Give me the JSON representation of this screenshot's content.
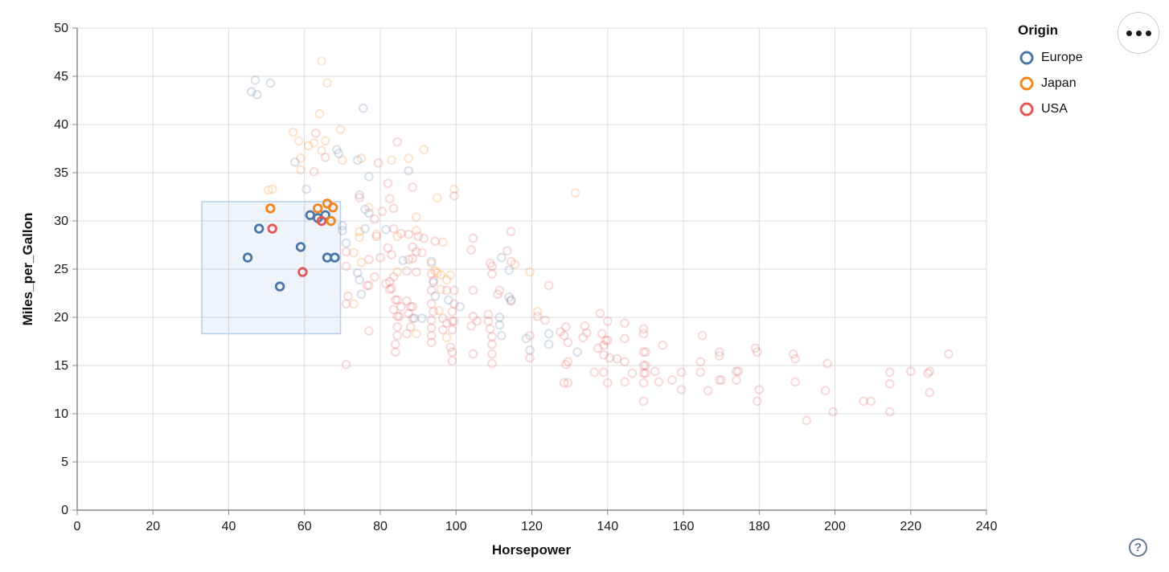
{
  "figure": {
    "x_axis": {
      "title": "Horsepower",
      "domain": [
        0,
        240
      ],
      "ticks": [
        0,
        20,
        40,
        60,
        80,
        100,
        120,
        140,
        160,
        180,
        200,
        220,
        240
      ]
    },
    "y_axis": {
      "title": "Miles_per_Gallon",
      "domain": [
        0,
        50
      ],
      "ticks": [
        0,
        5,
        10,
        15,
        20,
        25,
        30,
        35,
        40,
        45,
        50
      ]
    },
    "grid": true
  },
  "legend": {
    "title": "Origin",
    "position": "top-right",
    "items": [
      {
        "label": "Europe",
        "color": "#4c78a8"
      },
      {
        "label": "Japan",
        "color": "#f58518"
      },
      {
        "label": "USA",
        "color": "#e45756"
      }
    ]
  },
  "brush": {
    "x": [
      32.9,
      69.5
    ],
    "y": [
      18.3,
      32.0
    ],
    "fill": "rgba(100,140,210,0.10)",
    "stroke": "#b7cdee"
  },
  "controls": {
    "menu_button": "more-options",
    "help_button": "?"
  },
  "style": {
    "grid_color": "#dcdcdc",
    "axis_color": "#888888",
    "label_color": "#1a1a1a",
    "unselected_opacity": 0.22,
    "selected_opacity": 1
  },
  "chart_data": {
    "type": "scatter",
    "x_field": "Horsepower",
    "y_field": "Miles_per_Gallon",
    "color_field": "Origin",
    "x_range": [
      0,
      240
    ],
    "y_range": [
      0,
      50
    ],
    "legend_title": "Origin",
    "selection_note": "points inside brush rectangle are fully opaque, others faded",
    "series": [
      {
        "name": "Europe",
        "color": "#4c78a8",
        "points": [
          [
            45,
            26.2
          ],
          [
            48,
            29.2
          ],
          [
            53.5,
            23.2
          ],
          [
            59,
            27.3
          ],
          [
            61.5,
            30.6
          ],
          [
            63.5,
            30.3
          ],
          [
            65.5,
            30.6
          ],
          [
            66,
            26.2
          ],
          [
            68,
            26.2
          ],
          [
            47,
            44.6
          ],
          [
            51,
            44.3
          ],
          [
            46,
            43.4
          ],
          [
            47.5,
            43.1
          ],
          [
            75.5,
            41.7
          ],
          [
            68.5,
            37.4
          ],
          [
            69,
            37
          ],
          [
            74,
            36.3
          ],
          [
            57.5,
            36.1
          ],
          [
            87.5,
            35.2
          ],
          [
            77,
            34.6
          ],
          [
            60.5,
            33.3
          ],
          [
            74.5,
            32.7
          ],
          [
            76,
            31.2
          ],
          [
            77,
            30.8
          ],
          [
            70,
            29.5
          ],
          [
            76,
            29.2
          ],
          [
            81.5,
            29.1
          ],
          [
            70,
            29
          ],
          [
            71,
            27.7
          ],
          [
            86,
            25.9
          ],
          [
            93.5,
            25.8
          ],
          [
            112,
            26.2
          ],
          [
            114,
            24.9
          ],
          [
            74,
            24.6
          ],
          [
            74.5,
            23.9
          ],
          [
            94,
            23.6
          ],
          [
            75,
            22.4
          ],
          [
            94.5,
            22.2
          ],
          [
            114,
            22.1
          ],
          [
            114.5,
            21.8
          ],
          [
            98,
            21.8
          ],
          [
            101,
            21.1
          ],
          [
            111.5,
            20
          ],
          [
            91,
            19.9
          ],
          [
            89,
            19.9
          ],
          [
            111.5,
            19.2
          ],
          [
            124.5,
            18.3
          ],
          [
            112,
            18.1
          ],
          [
            118.5,
            17.8
          ],
          [
            124.5,
            17.2
          ],
          [
            119.5,
            16.6
          ],
          [
            132,
            16.4
          ]
        ]
      },
      {
        "name": "Japan",
        "color": "#f58518",
        "points": [
          [
            51,
            31.3
          ],
          [
            63.5,
            31.3
          ],
          [
            66,
            31.8
          ],
          [
            67.5,
            31.4
          ],
          [
            67,
            30
          ],
          [
            64.5,
            46.6
          ],
          [
            66,
            44.3
          ],
          [
            64,
            41.1
          ],
          [
            69.5,
            39.5
          ],
          [
            57,
            39.2
          ],
          [
            58.5,
            38.3
          ],
          [
            65.5,
            38.3
          ],
          [
            62.5,
            38.1
          ],
          [
            61,
            37.8
          ],
          [
            64.5,
            37.3
          ],
          [
            91.5,
            37.4
          ],
          [
            70,
            36.3
          ],
          [
            75,
            36.5
          ],
          [
            59,
            36.5
          ],
          [
            87.5,
            36.5
          ],
          [
            83,
            36.3
          ],
          [
            59,
            35.3
          ],
          [
            51.5,
            33.3
          ],
          [
            50.5,
            33.2
          ],
          [
            99.5,
            33.3
          ],
          [
            131.5,
            32.9
          ],
          [
            95,
            32.4
          ],
          [
            77,
            31.4
          ],
          [
            89.5,
            30.4
          ],
          [
            89.5,
            29
          ],
          [
            74.5,
            28.9
          ],
          [
            79,
            28.6
          ],
          [
            84.5,
            28.4
          ],
          [
            74.5,
            28.3
          ],
          [
            96.5,
            27.8
          ],
          [
            73,
            26.7
          ],
          [
            75,
            25.7
          ],
          [
            115.5,
            25.5
          ],
          [
            119.5,
            24.7
          ],
          [
            93.5,
            25.6
          ],
          [
            94.5,
            24.8
          ],
          [
            95,
            24.6
          ],
          [
            96,
            24.4
          ],
          [
            98.5,
            24.4
          ],
          [
            84.5,
            24.7
          ],
          [
            97.5,
            23.9
          ],
          [
            96,
            22.9
          ],
          [
            73,
            21.4
          ],
          [
            95.5,
            20.7
          ],
          [
            121.5,
            20.6
          ],
          [
            89.5,
            18.3
          ],
          [
            97.5,
            17.9
          ]
        ]
      },
      {
        "name": "USA",
        "color": "#e45756",
        "points": [
          [
            51.5,
            29.2
          ],
          [
            59.5,
            24.7
          ],
          [
            64.5,
            30
          ],
          [
            63,
            39.1
          ],
          [
            84.5,
            38.2
          ],
          [
            65.5,
            36.6
          ],
          [
            79.5,
            36
          ],
          [
            62.5,
            35.1
          ],
          [
            82,
            33.9
          ],
          [
            88.5,
            33.5
          ],
          [
            99.5,
            32.6
          ],
          [
            74.5,
            32.4
          ],
          [
            82.5,
            32.3
          ],
          [
            83.5,
            31.3
          ],
          [
            80.5,
            31
          ],
          [
            78.5,
            30.2
          ],
          [
            83.5,
            29.2
          ],
          [
            114.5,
            28.9
          ],
          [
            85.5,
            28.7
          ],
          [
            87.5,
            28.6
          ],
          [
            79,
            28.4
          ],
          [
            90,
            28.4
          ],
          [
            91.5,
            28.2
          ],
          [
            104.5,
            28.2
          ],
          [
            94.5,
            27.9
          ],
          [
            88.5,
            27.3
          ],
          [
            82,
            27.2
          ],
          [
            104,
            27
          ],
          [
            113.5,
            26.9
          ],
          [
            71,
            26.8
          ],
          [
            91,
            26.7
          ],
          [
            89.5,
            26.8
          ],
          [
            83,
            26.5
          ],
          [
            80,
            26.2
          ],
          [
            77,
            26
          ],
          [
            87.5,
            26
          ],
          [
            88.5,
            26.1
          ],
          [
            114.5,
            25.8
          ],
          [
            109,
            25.6
          ],
          [
            71,
            25.3
          ],
          [
            109.5,
            25.3
          ],
          [
            109.5,
            24.5
          ],
          [
            87,
            24.8
          ],
          [
            89.5,
            24.7
          ],
          [
            93.5,
            24.5
          ],
          [
            83.5,
            24.2
          ],
          [
            78.5,
            24.2
          ],
          [
            94,
            23.8
          ],
          [
            82.5,
            23.7
          ],
          [
            81.5,
            23.5
          ],
          [
            124.5,
            23.3
          ],
          [
            76.5,
            23.3
          ],
          [
            77,
            23.3
          ],
          [
            83,
            23
          ],
          [
            82.5,
            22.9
          ],
          [
            93.5,
            22.8
          ],
          [
            97.5,
            22.8
          ],
          [
            99.5,
            22.8
          ],
          [
            104.5,
            22.8
          ],
          [
            111.5,
            22.8
          ],
          [
            111,
            22.4
          ],
          [
            71.5,
            22.2
          ],
          [
            84.5,
            21.8
          ],
          [
            84,
            21.8
          ],
          [
            87,
            21.7
          ],
          [
            114.5,
            21.7
          ],
          [
            93.5,
            21.4
          ],
          [
            99.5,
            21.4
          ],
          [
            71,
            21.4
          ],
          [
            85.5,
            21.1
          ],
          [
            88,
            21.1
          ],
          [
            88.5,
            21.1
          ],
          [
            83.5,
            20.8
          ],
          [
            94,
            20.6
          ],
          [
            99,
            20.6
          ],
          [
            87.5,
            20.4
          ],
          [
            138,
            20.4
          ],
          [
            104.5,
            20.1
          ],
          [
            84.5,
            20.1
          ],
          [
            85,
            20.1
          ],
          [
            121.5,
            20.1
          ],
          [
            108.5,
            20.3
          ],
          [
            88.5,
            19.9
          ],
          [
            96.5,
            19.9
          ],
          [
            140,
            19.6
          ],
          [
            93.5,
            19.7
          ],
          [
            123.5,
            19.7
          ],
          [
            99,
            19.6
          ],
          [
            99.5,
            19.6
          ],
          [
            105.5,
            19.6
          ],
          [
            108.5,
            19.6
          ],
          [
            144.5,
            19.4
          ],
          [
            97.5,
            19.4
          ],
          [
            104,
            19.1
          ],
          [
            134,
            19.1
          ],
          [
            129,
            19
          ],
          [
            84.5,
            19
          ],
          [
            88,
            19
          ],
          [
            149.5,
            18.8
          ],
          [
            93.5,
            18.9
          ],
          [
            109,
            18.8
          ],
          [
            96.5,
            18.7
          ],
          [
            99,
            18.7
          ],
          [
            77,
            18.6
          ],
          [
            127.5,
            18.5
          ],
          [
            134.5,
            18.4
          ],
          [
            138.5,
            18.3
          ],
          [
            149.5,
            18.3
          ],
          [
            87,
            18.3
          ],
          [
            84.5,
            18.1
          ],
          [
            93.5,
            18.1
          ],
          [
            165,
            18.1
          ],
          [
            119.5,
            18.1
          ],
          [
            128.5,
            18.1
          ],
          [
            109.5,
            18
          ],
          [
            133.5,
            17.9
          ],
          [
            144.5,
            17.8
          ],
          [
            140,
            17.6
          ],
          [
            139.5,
            17.6
          ],
          [
            129.5,
            17.4
          ],
          [
            93.5,
            17.4
          ],
          [
            84,
            17.2
          ],
          [
            109.5,
            17.2
          ],
          [
            139,
            17.1
          ],
          [
            154.5,
            17.1
          ],
          [
            98.5,
            16.9
          ],
          [
            137.5,
            16.8
          ],
          [
            179,
            16.8
          ],
          [
            99,
            16.4
          ],
          [
            84,
            16.4
          ],
          [
            149.5,
            16.4
          ],
          [
            150,
            16.4
          ],
          [
            169.5,
            16.4
          ],
          [
            179.5,
            16.4
          ],
          [
            104.5,
            16.2
          ],
          [
            109.5,
            16.2
          ],
          [
            189,
            16.2
          ],
          [
            230,
            16.2
          ],
          [
            139,
            16.1
          ],
          [
            169.5,
            16
          ],
          [
            140.5,
            15.8
          ],
          [
            119.5,
            15.8
          ],
          [
            142.5,
            15.7
          ],
          [
            189.5,
            15.7
          ],
          [
            99,
            15.5
          ],
          [
            144.5,
            15.4
          ],
          [
            164.5,
            15.4
          ],
          [
            129.5,
            15.4
          ],
          [
            109.5,
            15.2
          ],
          [
            198,
            15.2
          ],
          [
            129,
            15.1
          ],
          [
            71,
            15.1
          ],
          [
            149.5,
            15
          ],
          [
            150,
            15
          ],
          [
            174,
            14.4
          ],
          [
            174.5,
            14.4
          ],
          [
            152.5,
            14.4
          ],
          [
            220,
            14.4
          ],
          [
            225,
            14.4
          ],
          [
            136.5,
            14.3
          ],
          [
            139,
            14.3
          ],
          [
            159.5,
            14.3
          ],
          [
            164.5,
            14.3
          ],
          [
            214.5,
            14.3
          ],
          [
            149.5,
            14.2
          ],
          [
            150,
            14.2
          ],
          [
            146.5,
            14.2
          ],
          [
            224.5,
            14.2
          ],
          [
            169.5,
            13.5
          ],
          [
            170,
            13.5
          ],
          [
            157,
            13.5
          ],
          [
            174,
            13.5
          ],
          [
            144.5,
            13.3
          ],
          [
            153.5,
            13.3
          ],
          [
            189.5,
            13.3
          ],
          [
            140,
            13.2
          ],
          [
            149.5,
            13.2
          ],
          [
            128.5,
            13.2
          ],
          [
            129.5,
            13.2
          ],
          [
            214.5,
            13.1
          ],
          [
            166.5,
            12.4
          ],
          [
            197.5,
            12.4
          ],
          [
            159.5,
            12.5
          ],
          [
            180,
            12.5
          ],
          [
            225,
            12.2
          ],
          [
            149.5,
            11.3
          ],
          [
            179.5,
            11.3
          ],
          [
            207.5,
            11.3
          ],
          [
            209.5,
            11.3
          ],
          [
            199.5,
            10.2
          ],
          [
            214.5,
            10.2
          ],
          [
            192.5,
            9.3
          ]
        ]
      }
    ]
  }
}
